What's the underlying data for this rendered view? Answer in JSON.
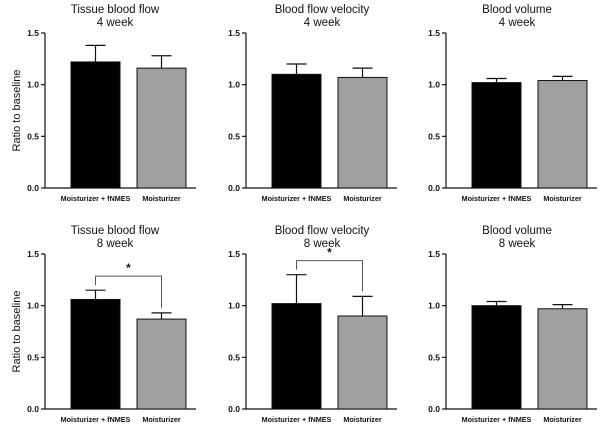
{
  "chart_data": [
    {
      "type": "bar",
      "title": "Tissue blood flow",
      "subtitle": "4 week",
      "ylabel": "Ratio to baseline",
      "categories": [
        "Moisturizer + fNMES",
        "Moisturizer"
      ],
      "values": [
        1.22,
        1.16
      ],
      "errors": [
        0.16,
        0.12
      ],
      "colors": [
        "#000000",
        "#a0a0a0"
      ],
      "ylim": [
        0,
        1.5
      ],
      "yticks": [
        "0.0",
        "0.5",
        "1.0",
        "1.5"
      ],
      "significance": null
    },
    {
      "type": "bar",
      "title": "Blood flow velocity",
      "subtitle": "4 week",
      "ylabel": "",
      "categories": [
        "Moisturizer + fNMES",
        "Moisturizer"
      ],
      "values": [
        1.1,
        1.07
      ],
      "errors": [
        0.1,
        0.09
      ],
      "colors": [
        "#000000",
        "#a0a0a0"
      ],
      "ylim": [
        0,
        1.5
      ],
      "yticks": [
        "0.0",
        "0.5",
        "1.0",
        "1.5"
      ],
      "significance": null
    },
    {
      "type": "bar",
      "title": "Blood volume",
      "subtitle": "4 week",
      "ylabel": "",
      "categories": [
        "Moisturizer + fNMES",
        "Moisturizer"
      ],
      "values": [
        1.02,
        1.04
      ],
      "errors": [
        0.04,
        0.04
      ],
      "colors": [
        "#000000",
        "#a0a0a0"
      ],
      "ylim": [
        0,
        1.5
      ],
      "yticks": [
        "0.0",
        "0.5",
        "1.0",
        "1.5"
      ],
      "significance": null
    },
    {
      "type": "bar",
      "title": "Tissue blood flow",
      "subtitle": "8 week",
      "ylabel": "Ratio to baseline",
      "categories": [
        "Moisturizer + fNMES",
        "Moisturizer"
      ],
      "values": [
        1.06,
        0.87
      ],
      "errors": [
        0.09,
        0.06
      ],
      "colors": [
        "#000000",
        "#a0a0a0"
      ],
      "ylim": [
        0,
        1.5
      ],
      "yticks": [
        "0.0",
        "0.5",
        "1.0",
        "1.5"
      ],
      "significance": "*"
    },
    {
      "type": "bar",
      "title": "Blood flow velocity",
      "subtitle": "8 week",
      "ylabel": "",
      "categories": [
        "Moisturizer + fNMES",
        "Moisturizer"
      ],
      "values": [
        1.02,
        0.9
      ],
      "errors": [
        0.28,
        0.19
      ],
      "colors": [
        "#000000",
        "#a0a0a0"
      ],
      "ylim": [
        0,
        1.5
      ],
      "yticks": [
        "0.0",
        "0.5",
        "1.0",
        "1.5"
      ],
      "significance": "*"
    },
    {
      "type": "bar",
      "title": "Blood volume",
      "subtitle": "8 week",
      "ylabel": "",
      "categories": [
        "Moisturizer + fNMES",
        "Moisturizer"
      ],
      "values": [
        1.0,
        0.97
      ],
      "errors": [
        0.04,
        0.04
      ],
      "colors": [
        "#000000",
        "#a0a0a0"
      ],
      "ylim": [
        0,
        1.5
      ],
      "yticks": [
        "0.0",
        "0.5",
        "1.0",
        "1.5"
      ],
      "significance": null
    }
  ]
}
